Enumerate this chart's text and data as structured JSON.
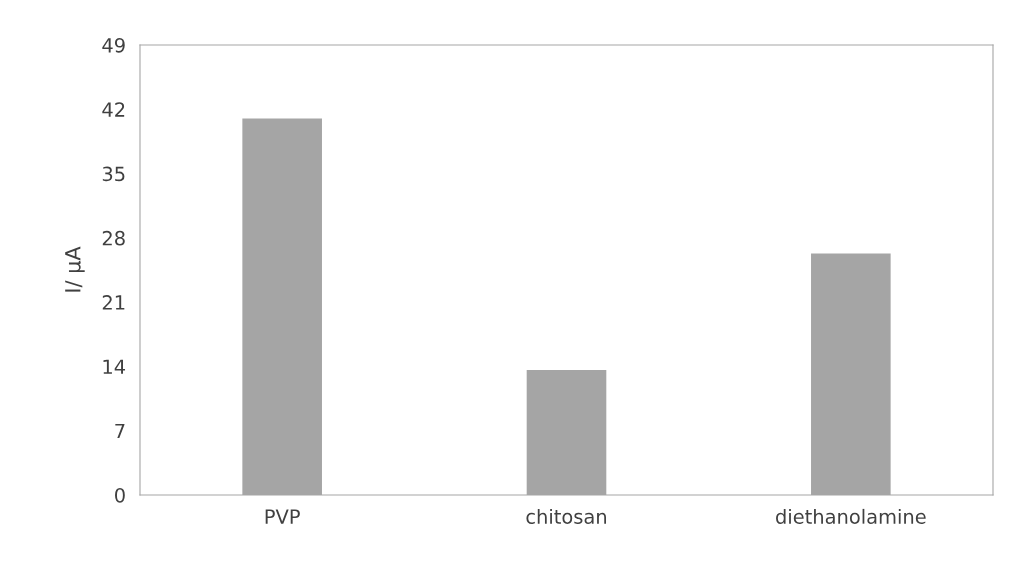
{
  "chart_data": {
    "type": "bar",
    "ylabel": "I/ µA",
    "categories": [
      "PVP",
      "chitosan",
      "diethanolamine"
    ],
    "values": [
      41.0,
      13.6,
      26.3
    ],
    "color": "#a5a5a5",
    "ylim": [
      0,
      49
    ],
    "yticks": [
      0,
      7,
      14,
      21,
      28,
      35,
      42,
      49
    ],
    "grid": false
  }
}
